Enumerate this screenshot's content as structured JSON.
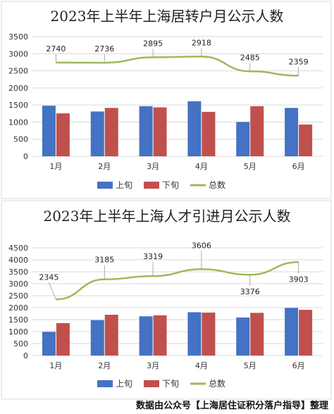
{
  "chart_data": [
    {
      "type": "bar",
      "title": "2023年上半年上海居转户月公示人数",
      "categories": [
        "1月",
        "2月",
        "3月",
        "4月",
        "5月",
        "6月"
      ],
      "ylim": [
        0,
        3500
      ],
      "yticks": [
        0,
        500,
        1000,
        1500,
        2000,
        2500,
        3000,
        3500
      ],
      "grid": true,
      "legend_position": "bottom",
      "series": [
        {
          "name": "上旬",
          "type": "bar",
          "color": "#4472c4",
          "values": [
            1480,
            1310,
            1465,
            1610,
            1005,
            1415
          ]
        },
        {
          "name": "下旬",
          "type": "bar",
          "color": "#c0504d",
          "values": [
            1255,
            1415,
            1430,
            1300,
            1465,
            930
          ]
        },
        {
          "name": "总数",
          "type": "line",
          "color": "#9bbb59",
          "values": [
            2740,
            2736,
            2895,
            2918,
            2485,
            2359
          ],
          "labels": [
            "2740",
            "2736",
            "2895",
            "2918",
            "2485",
            "2359"
          ]
        }
      ]
    },
    {
      "type": "bar",
      "title": "2023年上半年上海人才引进月公示人数",
      "categories": [
        "1月",
        "2月",
        "3月",
        "4月",
        "5月",
        "6月"
      ],
      "ylim": [
        0,
        4500
      ],
      "yticks": [
        0,
        500,
        1000,
        1500,
        2000,
        2500,
        3000,
        3500,
        4000,
        4500
      ],
      "grid": true,
      "legend_position": "bottom",
      "series": [
        {
          "name": "上旬",
          "type": "bar",
          "color": "#4472c4",
          "values": [
            990,
            1480,
            1640,
            1810,
            1590,
            1990
          ]
        },
        {
          "name": "下旬",
          "type": "bar",
          "color": "#c0504d",
          "values": [
            1355,
            1705,
            1680,
            1795,
            1785,
            1910
          ]
        },
        {
          "name": "总数",
          "type": "line",
          "color": "#9bbb59",
          "values": [
            2345,
            3185,
            3319,
            3606,
            3376,
            3903
          ],
          "labels": [
            "2345",
            "3185",
            "3319",
            "3606",
            "3376",
            "3903"
          ]
        }
      ]
    }
  ],
  "footer": "数据由公众号【上海居住证积分落户指导】整理"
}
